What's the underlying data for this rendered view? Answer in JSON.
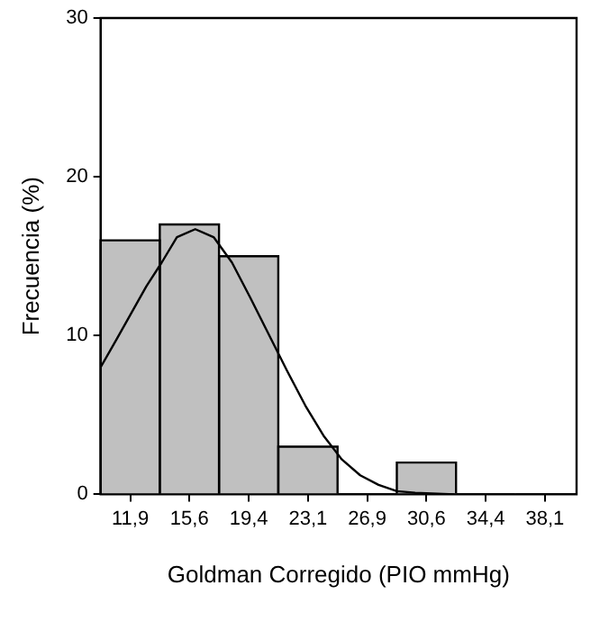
{
  "chart_data": {
    "type": "histogram",
    "xlabel": "Goldman Corregido (PIO mmHg)",
    "ylabel": "Frecuencia (%)",
    "bins": [
      10.03,
      13.77,
      17.51,
      21.26,
      25.0,
      28.74,
      32.49,
      36.23,
      39.97
    ],
    "values": [
      16,
      17,
      15,
      3,
      0,
      2,
      0,
      0
    ],
    "color": "#c0c0c0",
    "series": [
      {
        "type": "line",
        "color": "#000000",
        "x": [
          10.03,
          11.0,
          11.96,
          12.92,
          13.89,
          14.85,
          16.01,
          17.17,
          18.33,
          19.48,
          20.64,
          21.8,
          22.96,
          24.11,
          25.27,
          26.43,
          27.59,
          28.75,
          29.9,
          32.4
        ],
        "values": [
          8.0,
          9.7,
          11.4,
          13.1,
          14.6,
          16.2,
          16.7,
          16.2,
          14.6,
          12.4,
          10.1,
          7.8,
          5.6,
          3.7,
          2.2,
          1.2,
          0.6,
          0.2,
          0.1,
          0
        ]
      }
    ],
    "xlim": [
      10.03,
      40.1
    ],
    "xticks": [
      {
        "value": 11.9,
        "label": "11,9"
      },
      {
        "value": 15.64,
        "label": "15,6"
      },
      {
        "value": 19.39,
        "label": "19,4"
      },
      {
        "value": 23.13,
        "label": "23,1"
      },
      {
        "value": 26.87,
        "label": "26,9"
      },
      {
        "value": 30.62,
        "label": "30,6"
      },
      {
        "value": 34.36,
        "label": "34,4"
      },
      {
        "value": 38.1,
        "label": "38,1"
      }
    ],
    "ylim": [
      0,
      30
    ],
    "yticks": [
      0,
      10,
      20,
      30
    ],
    "grid": false,
    "legend": false,
    "marker": "none",
    "line_style": "solid"
  }
}
